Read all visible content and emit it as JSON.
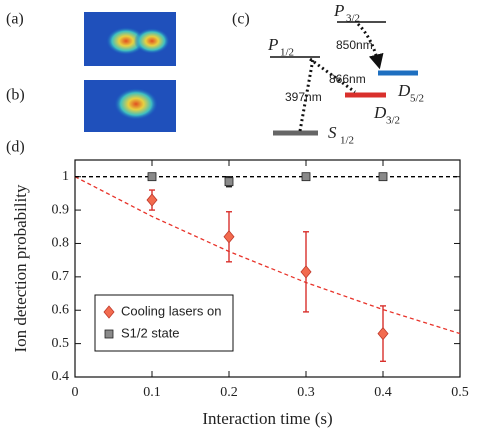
{
  "panel_labels": [
    "(a)",
    "(b)",
    "(c)",
    "(d)"
  ],
  "level_diagram": {
    "levels": [
      {
        "symbol": "P",
        "sub": "3/2"
      },
      {
        "symbol": "P",
        "sub": "1/2"
      },
      {
        "symbol": "D",
        "sub": "5/2"
      },
      {
        "symbol": "D",
        "sub": "3/2"
      },
      {
        "symbol": "S",
        "sub": "1/2"
      }
    ],
    "transitions": [
      "850nm",
      "866nm",
      "397nm"
    ]
  },
  "chart_data": {
    "type": "scatter",
    "xlabel": "Interaction time (s)",
    "ylabel": "Ion detection probability",
    "xlim": [
      0,
      0.5
    ],
    "xticks": [
      0,
      0.1,
      0.2,
      0.3,
      0.4,
      0.5
    ],
    "ylim": [
      0.4,
      1.05
    ],
    "yticks": [
      0.4,
      0.5,
      0.6,
      0.7,
      0.8,
      0.9,
      1
    ],
    "legend": "lower left",
    "series": [
      {
        "name": "Cooling lasers on",
        "color": "#f26b4f",
        "marker": "diamond",
        "x": [
          0.1,
          0.2,
          0.3,
          0.4
        ],
        "values": [
          0.93,
          0.82,
          0.715,
          0.53
        ],
        "errors": [
          0.03,
          0.075,
          0.12,
          0.083
        ]
      },
      {
        "name": "S1/2 state",
        "color": "#8a8a8a",
        "marker": "square",
        "x": [
          0.1,
          0.2,
          0.3,
          0.4
        ],
        "values": [
          1.0,
          0.985,
          1.0,
          1.0
        ],
        "errors": [
          0.005,
          0.015,
          0.005,
          0.005
        ]
      }
    ],
    "fit_lines": [
      {
        "color": "#e8332a",
        "x": [
          0,
          0.1,
          0.2,
          0.3,
          0.4,
          0.5
        ],
        "values": [
          1,
          0.881,
          0.776,
          0.683,
          0.602,
          0.53
        ]
      },
      {
        "color": "#000000",
        "x": [
          0,
          0.5
        ],
        "values": [
          1,
          1
        ]
      }
    ]
  }
}
